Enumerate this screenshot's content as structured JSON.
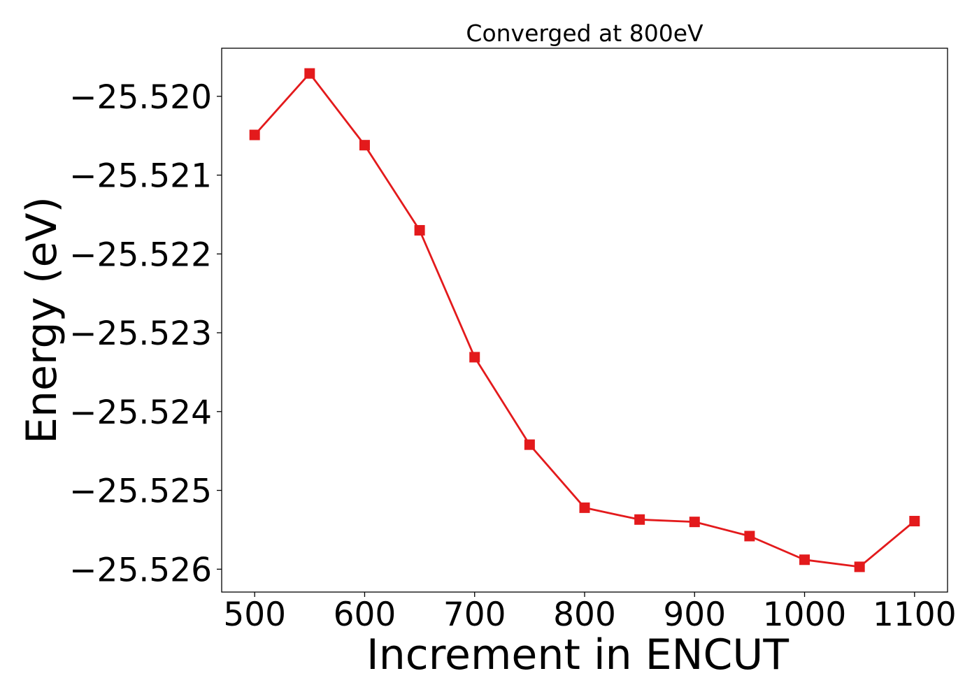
{
  "chart_data": {
    "type": "line",
    "title": "Converged at 800eV",
    "xlabel": "Increment in ENCUT",
    "ylabel": "Energy (eV)",
    "x": [
      500,
      550,
      600,
      650,
      700,
      750,
      800,
      850,
      900,
      950,
      1000,
      1050,
      1100
    ],
    "series": [
      {
        "values": [
          -25.52049,
          -25.51971,
          -25.52062,
          -25.5217,
          -25.52331,
          -25.52442,
          -25.52522,
          -25.52537,
          -25.5254,
          -25.52558,
          -25.52588,
          -25.52597,
          -25.52539
        ],
        "color": "#e31a1c",
        "marker": "square"
      }
    ],
    "xlim": [
      470,
      1130
    ],
    "ylim": [
      -25.52629,
      -25.51939
    ],
    "xticks": [
      500,
      600,
      700,
      800,
      900,
      1000,
      1100
    ],
    "xtick_labels": [
      "500",
      "600",
      "700",
      "800",
      "900",
      "1000",
      "1100"
    ],
    "yticks": [
      -25.52,
      -25.521,
      -25.522,
      -25.523,
      -25.524,
      -25.525,
      -25.526
    ],
    "ytick_labels": [
      "−25.520",
      "−25.521",
      "−25.522",
      "−25.523",
      "−25.524",
      "−25.525",
      "−25.526"
    ],
    "grid": false,
    "legend": "none"
  }
}
